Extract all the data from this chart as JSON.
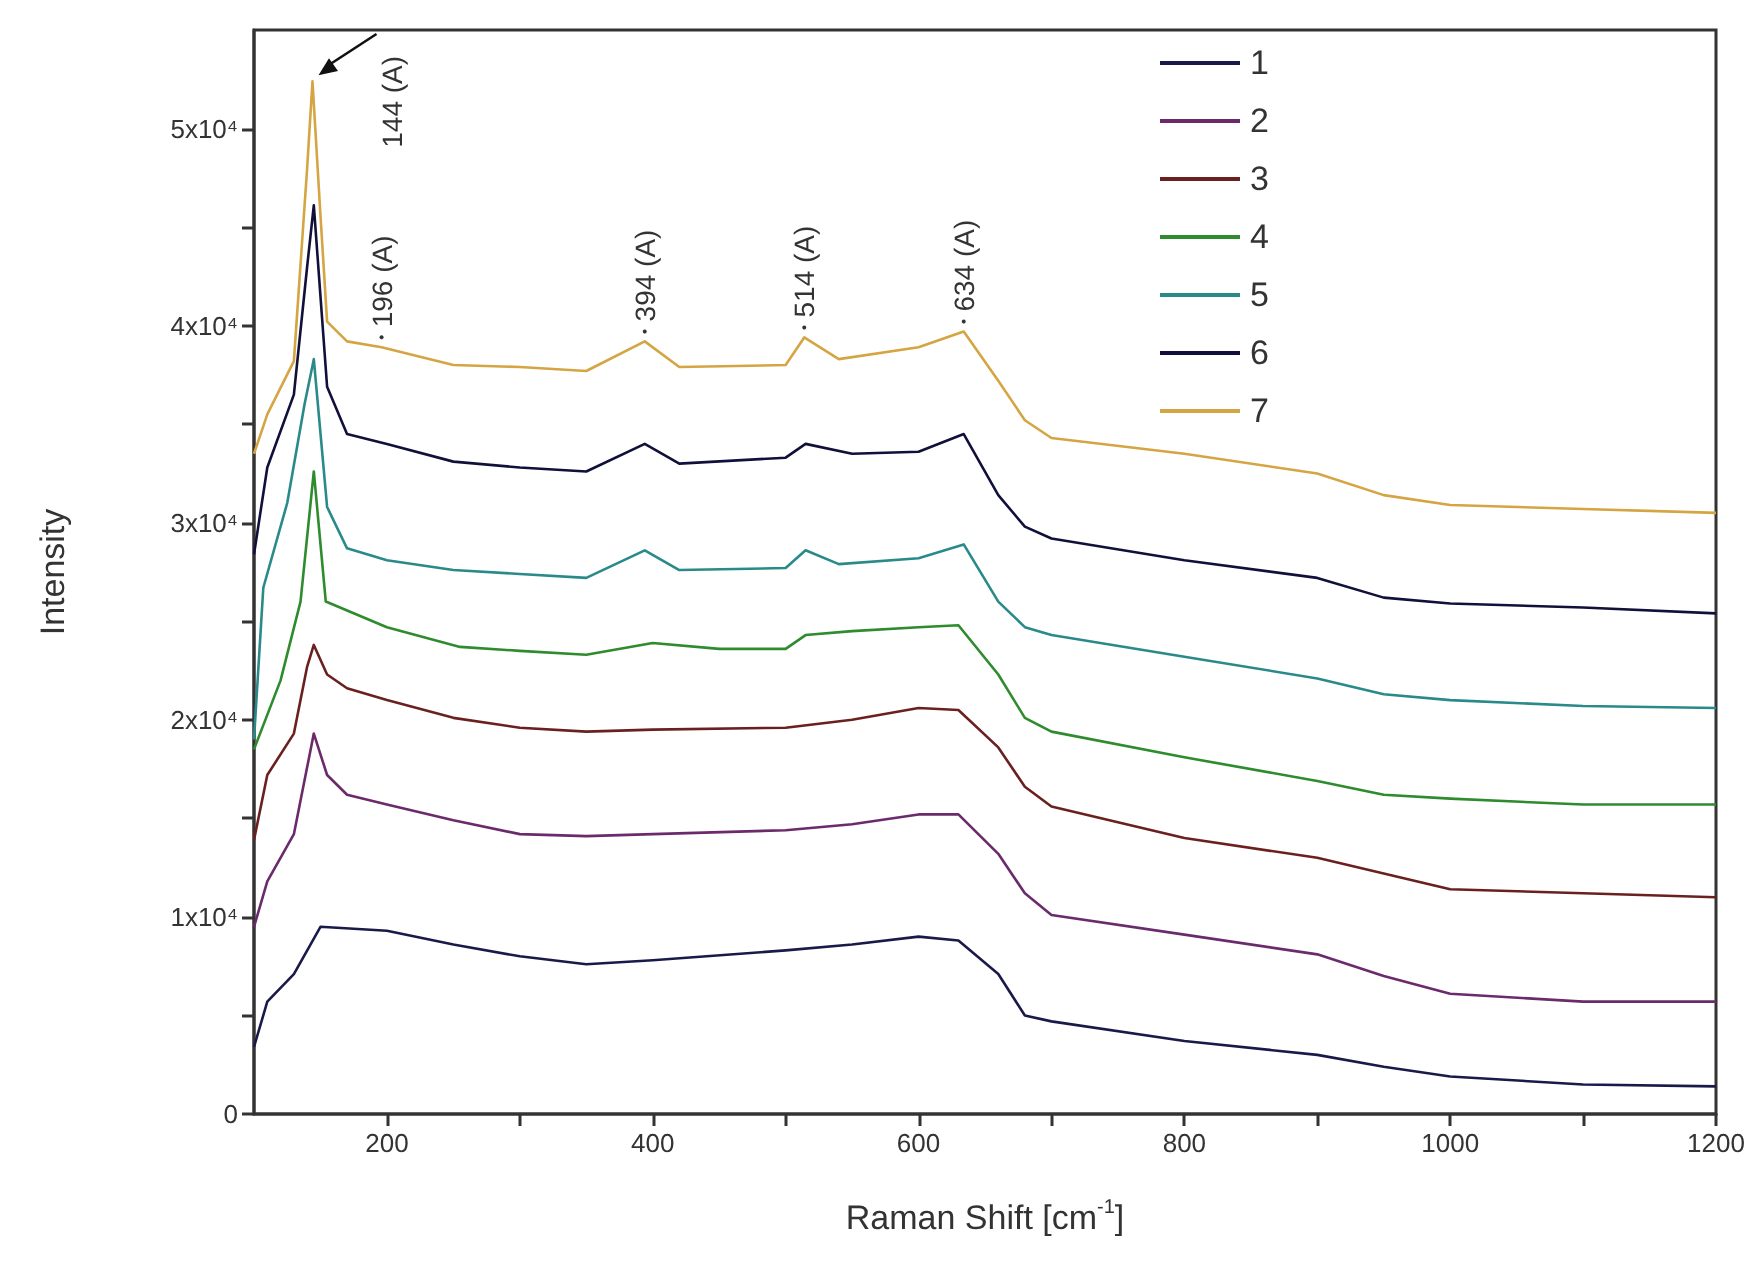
{
  "chart_data": {
    "type": "line",
    "xlabel": "Raman Shift [cm$^{-1}$]",
    "ylabel": "Intensity",
    "xlim": [
      100,
      1200
    ],
    "xticks": [
      200,
      {
        "value": 300,
        "label": null
      },
      400,
      {
        "value": 500,
        "label": null
      },
      600,
      {
        "value": 700,
        "label": null
      },
      800,
      {
        "value": 900,
        "label": null
      },
      1000,
      {
        "value": 1100,
        "label": null
      },
      1200
    ],
    "ylim": [
      0,
      55000
    ],
    "yticks": [
      {
        "value": 0,
        "label": "0"
      },
      {
        "value": 5000,
        "label": null
      },
      {
        "value": 10000,
        "label": "1x10⁴"
      },
      {
        "value": 15000,
        "label": null
      },
      {
        "value": 20000,
        "label": "2x10⁴"
      },
      {
        "value": 25000,
        "label": null
      },
      {
        "value": 30000,
        "label": "3x10⁴"
      },
      {
        "value": 35000,
        "label": null
      },
      {
        "value": 40000,
        "label": "4x10⁴"
      },
      {
        "value": 45000,
        "label": null
      },
      {
        "value": 50000,
        "label": "5x10⁴"
      }
    ],
    "grid": false,
    "legend": "top",
    "marker": "none",
    "annotations": [
      {
        "text": "144 (A)",
        "x": 144,
        "y": 52400
      },
      {
        "text": "196 (A)",
        "x": 196,
        "y": 38900
      },
      {
        "text": "394 (A)",
        "x": 394,
        "y": 39200
      },
      {
        "text": "514 (A)",
        "x": 514,
        "y": 39400
      },
      {
        "text": "634 (A)",
        "x": 634,
        "y": 39700
      }
    ],
    "series": [
      {
        "name": "1",
        "color": "#1a1a4a",
        "x": [
          100,
          110,
          130,
          150,
          200,
          250,
          300,
          350,
          400,
          500,
          550,
          600,
          630,
          660,
          680,
          700,
          800,
          900,
          950,
          1000,
          1100,
          1200
        ],
        "values": [
          3400,
          5700,
          7100,
          9500,
          9300,
          8600,
          8000,
          7600,
          7800,
          8300,
          8600,
          9000,
          8800,
          7100,
          5000,
          4700,
          3700,
          3000,
          2400,
          1900,
          1500,
          1400
        ]
      },
      {
        "name": "2",
        "color": "#6b2a6b",
        "x": [
          100,
          110,
          130,
          140,
          145,
          155,
          170,
          200,
          250,
          300,
          350,
          400,
          500,
          550,
          600,
          630,
          660,
          680,
          700,
          800,
          900,
          950,
          1000,
          1100,
          1200
        ],
        "values": [
          9500,
          11800,
          14200,
          17600,
          19300,
          17200,
          16200,
          15700,
          14900,
          14200,
          14100,
          14200,
          14400,
          14700,
          15200,
          15200,
          13200,
          11200,
          10100,
          9100,
          8100,
          7000,
          6100,
          5700,
          5700
        ]
      },
      {
        "name": "3",
        "color": "#6b2020",
        "x": [
          100,
          110,
          130,
          140,
          145,
          155,
          170,
          200,
          250,
          300,
          350,
          400,
          500,
          550,
          600,
          630,
          660,
          680,
          700,
          800,
          900,
          950,
          1000,
          1100,
          1200
        ],
        "values": [
          13900,
          17200,
          19300,
          22700,
          23800,
          22300,
          21600,
          21000,
          20100,
          19600,
          19400,
          19500,
          19600,
          20000,
          20600,
          20500,
          18600,
          16600,
          15600,
          14000,
          13000,
          12200,
          11400,
          11200,
          11000
        ]
      },
      {
        "name": "4",
        "color": "#2e8b2e",
        "x": [
          100,
          120,
          135,
          145,
          154,
          200,
          255,
          300,
          350,
          400,
          450,
          500,
          515,
          550,
          600,
          630,
          660,
          680,
          700,
          800,
          900,
          950,
          1000,
          1100,
          1200
        ],
        "values": [
          18500,
          22000,
          26000,
          32600,
          26000,
          24700,
          23700,
          23500,
          23300,
          23900,
          23600,
          23600,
          24300,
          24500,
          24700,
          24800,
          22300,
          20100,
          19400,
          18100,
          16900,
          16200,
          16000,
          15700,
          15700
        ]
      },
      {
        "name": "5",
        "color": "#2a8a8a",
        "x": [
          100,
          107,
          125,
          138,
          145,
          155,
          170,
          200,
          250,
          300,
          350,
          394,
          420,
          500,
          515,
          540,
          600,
          634,
          660,
          680,
          700,
          800,
          900,
          950,
          1000,
          1100,
          1200
        ],
        "values": [
          19000,
          26700,
          31000,
          36000,
          38300,
          30800,
          28700,
          28100,
          27600,
          27400,
          27200,
          28600,
          27600,
          27700,
          28600,
          27900,
          28200,
          28900,
          26000,
          24700,
          24300,
          23200,
          22100,
          21300,
          21000,
          20700,
          20600
        ]
      },
      {
        "name": "6",
        "color": "#10103a",
        "x": [
          100,
          110,
          130,
          140,
          145,
          155,
          170,
          200,
          250,
          300,
          350,
          394,
          420,
          500,
          515,
          550,
          600,
          634,
          660,
          680,
          700,
          800,
          900,
          950,
          1000,
          1100,
          1200
        ],
        "values": [
          28400,
          32800,
          36500,
          43000,
          46100,
          36900,
          34500,
          34000,
          33100,
          32800,
          32600,
          34000,
          33000,
          33300,
          34000,
          33500,
          33600,
          34500,
          31400,
          29800,
          29200,
          28100,
          27200,
          26200,
          25900,
          25700,
          25400
        ]
      },
      {
        "name": "7",
        "color": "#d4a542",
        "x": [
          100,
          110,
          130,
          140,
          144,
          150,
          155,
          170,
          196,
          250,
          300,
          350,
          394,
          420,
          500,
          514,
          540,
          600,
          634,
          660,
          680,
          700,
          800,
          900,
          950,
          1000,
          1100,
          1200
        ],
        "values": [
          33500,
          35500,
          38200,
          48000,
          52400,
          45600,
          40200,
          39200,
          38900,
          38000,
          37900,
          37700,
          39200,
          37900,
          38000,
          39400,
          38300,
          38900,
          39700,
          37200,
          35200,
          34300,
          33500,
          32500,
          31400,
          30900,
          30700,
          30500
        ]
      }
    ]
  }
}
